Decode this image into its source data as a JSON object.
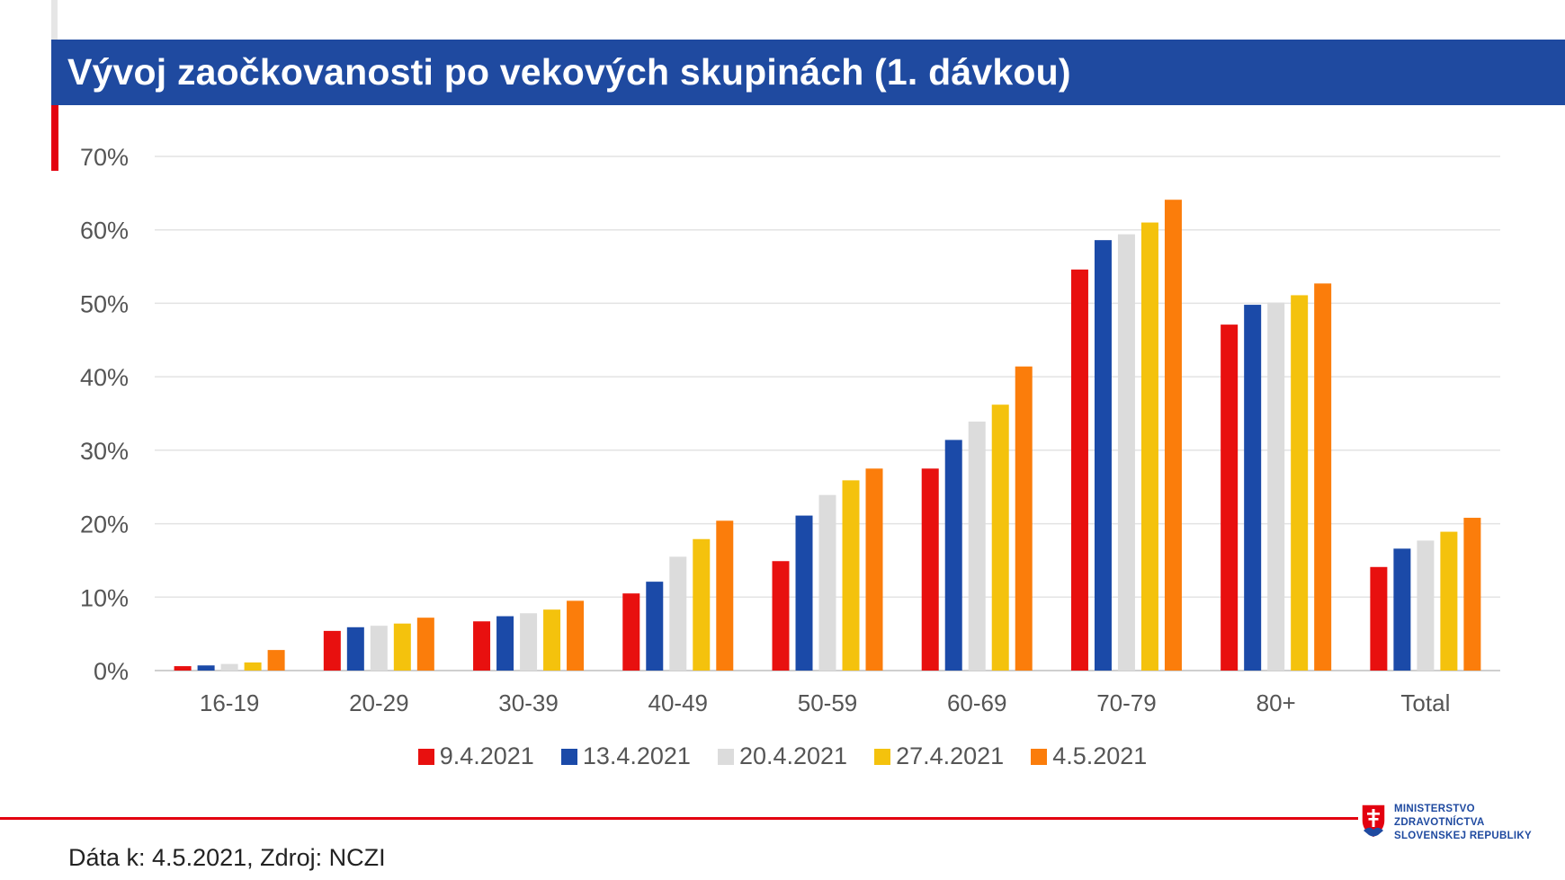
{
  "page": {
    "title": "Vývoj zaočkovanosti po vekových skupinách (1. dávkou)",
    "footer": "Dáta k: 4.5.2021, Zdroj: NCZI",
    "logo": {
      "line1": "MINISTERSTVO",
      "line2": "ZDRAVOTNÍCTVA",
      "line3": "SLOVENSKEJ REPUBLIKY",
      "emblem": "slovak-coat-of-arms-icon"
    },
    "colors": {
      "title_band": "#1f4aa0",
      "accent_red": "#e3000f"
    }
  },
  "chart_data": {
    "type": "bar",
    "title": "Vývoj zaočkovanosti po vekových skupinách (1. dávkou)",
    "categories": [
      "16-19",
      "20-29",
      "30-39",
      "40-49",
      "50-59",
      "60-69",
      "70-79",
      "80+",
      "Total"
    ],
    "series": [
      {
        "name": "9.4.2021",
        "color": "#e8100f",
        "values": [
          0.6,
          5.4,
          6.7,
          10.5,
          14.9,
          27.5,
          54.6,
          47.1,
          14.1
        ]
      },
      {
        "name": "13.4.2021",
        "color": "#1b4aa8",
        "values": [
          0.7,
          5.9,
          7.4,
          12.1,
          21.1,
          31.4,
          58.6,
          49.8,
          16.6
        ]
      },
      {
        "name": "20.4.2021",
        "color": "#dcdcdc",
        "values": [
          0.9,
          6.1,
          7.8,
          15.5,
          23.9,
          33.9,
          59.4,
          50.1,
          17.7
        ]
      },
      {
        "name": "27.4.2021",
        "color": "#f4c20d",
        "values": [
          1.1,
          6.4,
          8.3,
          17.9,
          25.9,
          36.2,
          61.0,
          51.1,
          18.9
        ]
      },
      {
        "name": "4.5.2021",
        "color": "#fb7d0b",
        "values": [
          2.8,
          7.2,
          9.5,
          20.4,
          27.5,
          41.4,
          64.1,
          52.7,
          20.8
        ]
      }
    ],
    "ylim": [
      0,
      70
    ],
    "yticks": [
      0,
      10,
      20,
      30,
      40,
      50,
      60,
      70
    ],
    "ytick_labels": [
      "0%",
      "10%",
      "20%",
      "30%",
      "40%",
      "50%",
      "60%",
      "70%"
    ],
    "xlabel": "",
    "ylabel": "",
    "grid": true,
    "legend_position": "bottom"
  }
}
